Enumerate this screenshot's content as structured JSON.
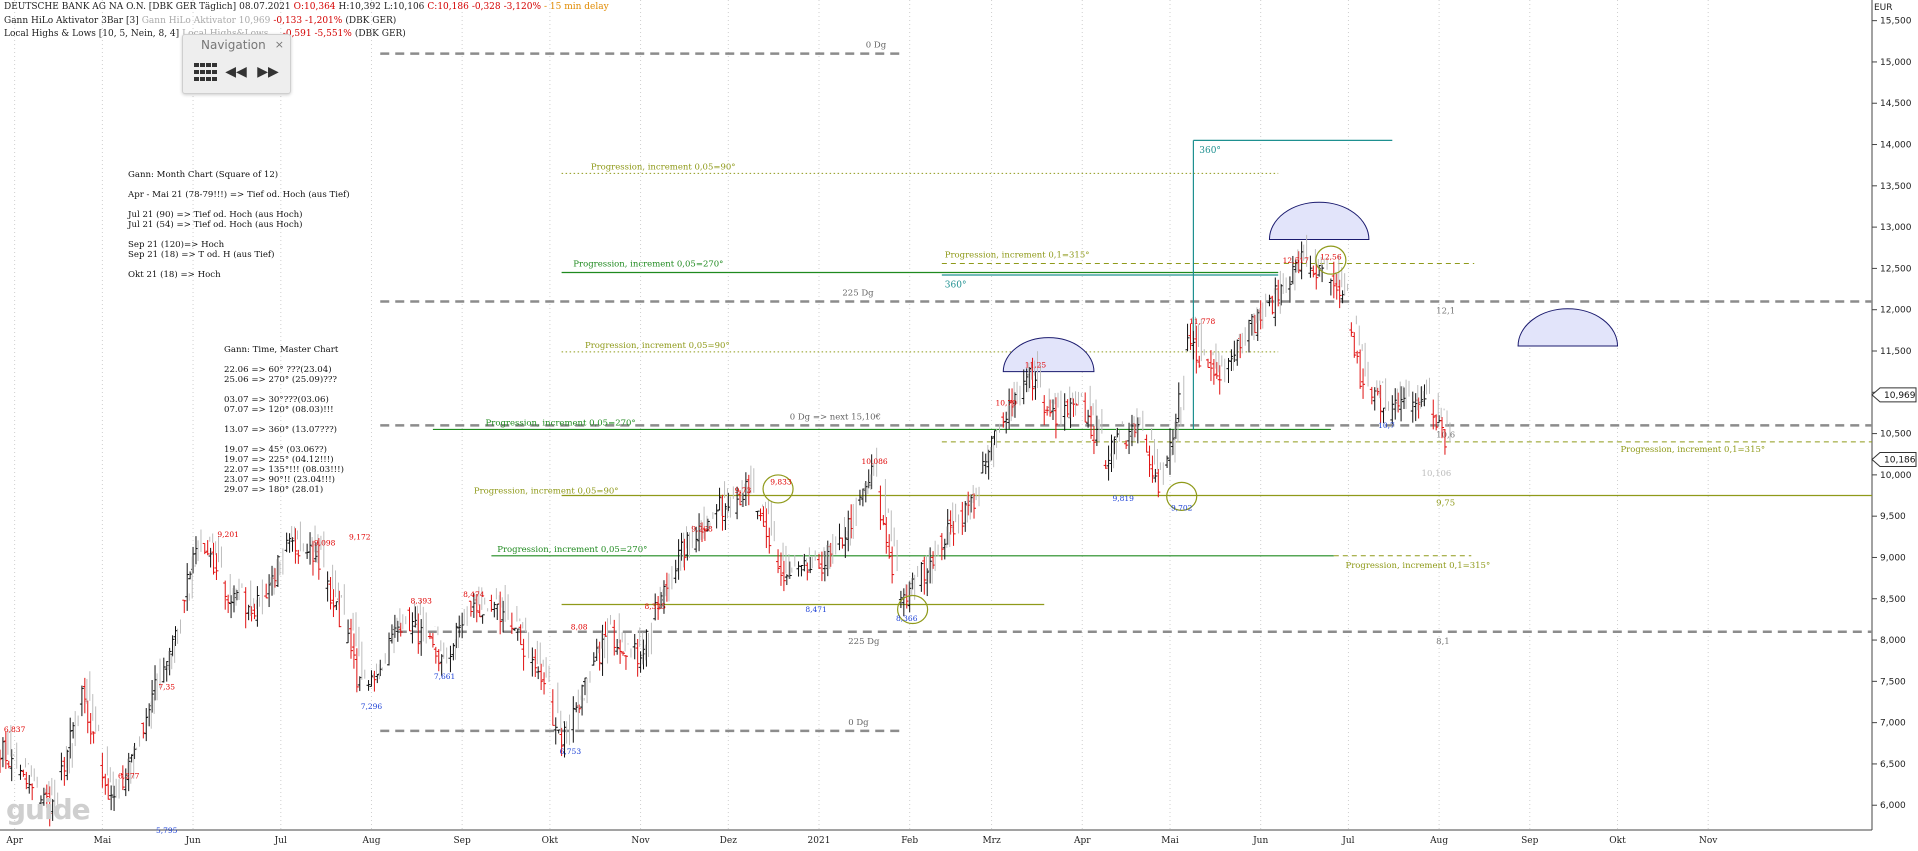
{
  "header": {
    "line1": {
      "name": "DEUTSCHE BANK AG NA O.N. [DBK GER Täglich]",
      "date": "08.07.2021",
      "open": "-",
      "open_val": "O:10,364",
      "high_val": "H:10,392",
      "low_val": "L:10,106",
      "close_val": "C:10,186",
      "change": "-0,328",
      "change_pct": "-3,120%",
      "delay": "- 15 min delay"
    },
    "line2": {
      "name": "Gann HiLo Aktivator 3Bar [3]",
      "value": "Gann HiLo Aktivator 10,969",
      "change": "-0,133 -1,201%",
      "ticker": "(DBK GER)"
    },
    "line3": {
      "name": "Local Highs & Lows [10, 5, Nein, 8, 4]",
      "faded": "Local Highs&Lows ...",
      "change": "-0,591 -5,551%",
      "ticker": "(DBK GER)"
    }
  },
  "navigation": {
    "title": "Navigation",
    "close": "×",
    "rewind": "◀◀",
    "forward": "▶▶"
  },
  "notes": {
    "month_chart": [
      "Gann: Month Chart (Square of 12)",
      "",
      "Apr - Mai 21 (78-79!!!) => Tief od. Hoch (aus Tief)",
      "",
      "Jul 21 (90) => Tief od. Hoch (aus Hoch)",
      "Jul 21 (54) => Tief od. Hoch (aus Hoch)",
      "",
      "Sep 21 (120)=> Hoch",
      "Sep 21 (18) => T od. H (aus Tief)",
      "",
      "Okt 21 (18) => Hoch"
    ],
    "master_chart": [
      "Gann: Time, Master Chart",
      "",
      "22.06 => 60° ???(23.04)",
      "25.06 => 270° (25.09)???",
      "",
      "03.07 => 30°???(03.06)",
      "07.07 => 120° (08.03)!!!",
      "",
      "13.07 => 360° (13.07???)",
      "",
      "19.07 => 45° (03.06??)",
      "19.07 => 225° (04.12!!!)",
      "22.07 => 135°!!! (08.03!!!)",
      "23.07 => 90°!! (23.04!!!)",
      "29.07 => 180° (28.01)"
    ]
  },
  "watermark": "guide",
  "colors": {
    "up_bar": "#111111",
    "down_bar": "#e01010",
    "shadow_bar": "#bdbdbd",
    "gann_dash": "#8c8c8c",
    "olive": "#8f9a1a",
    "green": "#1f8a1f",
    "teal": "#1e9090",
    "high_label": "#e00000",
    "low_label": "#1a3fd6",
    "semicircle_fill": "#e2e4fa",
    "semicircle_stroke": "#1a1a6e",
    "price_tag": "#ffffff"
  },
  "chart_data": {
    "type": "ohlc",
    "currency": "EUR",
    "y_ticks": [
      "15,500",
      "15,000",
      "14,500",
      "14,000",
      "13,500",
      "13,000",
      "12,500",
      "12,000",
      "11,500",
      "11,000",
      "10,500",
      "10,000",
      "9,500",
      "9,000",
      "8,500",
      "8,000",
      "7,500",
      "7,000",
      "6,500",
      "6,000"
    ],
    "y_tick_values": [
      15.5,
      15,
      14.5,
      14,
      13.5,
      13,
      12.5,
      12,
      11.5,
      11,
      10.5,
      10,
      9.5,
      9,
      8.5,
      8,
      7.5,
      7,
      6.5,
      6
    ],
    "ylim": [
      5.7,
      15.75
    ],
    "x_labels": [
      {
        "label": "Apr",
        "d": 5
      },
      {
        "label": "Mai",
        "d": 35
      },
      {
        "label": "Jun",
        "d": 66
      },
      {
        "label": "Jul",
        "d": 96
      },
      {
        "label": "Aug",
        "d": 127
      },
      {
        "label": "Sep",
        "d": 158
      },
      {
        "label": "Okt",
        "d": 188
      },
      {
        "label": "Nov",
        "d": 219
      },
      {
        "label": "Dez",
        "d": 249
      },
      {
        "label": "2021",
        "d": 280
      },
      {
        "label": "Feb",
        "d": 311
      },
      {
        "label": "Mrz",
        "d": 339
      },
      {
        "label": "Apr",
        "d": 370
      },
      {
        "label": "Mai",
        "d": 400
      },
      {
        "label": "Jun",
        "d": 431
      },
      {
        "label": "Jul",
        "d": 461
      },
      {
        "label": "Aug",
        "d": 492
      },
      {
        "label": "Sep",
        "d": 523
      },
      {
        "label": "Okt",
        "d": 553
      },
      {
        "label": "Nov",
        "d": 584
      }
    ],
    "xlim": [
      0,
      640
    ],
    "price_tags": [
      {
        "label": "10,969",
        "y": 10.969
      },
      {
        "label": "10,186",
        "y": 10.186
      }
    ],
    "price_anchors": [
      [
        0,
        6.7
      ],
      [
        10,
        6.2
      ],
      [
        18,
        6.0
      ],
      [
        28,
        7.3
      ],
      [
        38,
        6.0
      ],
      [
        45,
        6.6
      ],
      [
        58,
        7.9
      ],
      [
        68,
        9.2
      ],
      [
        78,
        8.5
      ],
      [
        88,
        8.4
      ],
      [
        98,
        9.1
      ],
      [
        105,
        9.2
      ],
      [
        118,
        8.1
      ],
      [
        124,
        7.3
      ],
      [
        138,
        8.3
      ],
      [
        152,
        7.7
      ],
      [
        160,
        8.4
      ],
      [
        172,
        8.3
      ],
      [
        184,
        7.6
      ],
      [
        192,
        6.8
      ],
      [
        208,
        8.1
      ],
      [
        218,
        7.8
      ],
      [
        232,
        9.0
      ],
      [
        242,
        9.5
      ],
      [
        255,
        9.8
      ],
      [
        268,
        8.7
      ],
      [
        285,
        9.0
      ],
      [
        298,
        10.0
      ],
      [
        308,
        8.4
      ],
      [
        320,
        9.1
      ],
      [
        333,
        9.7
      ],
      [
        342,
        10.7
      ],
      [
        352,
        11.2
      ],
      [
        358,
        10.7
      ],
      [
        370,
        10.8
      ],
      [
        378,
        10.2
      ],
      [
        390,
        10.7
      ],
      [
        396,
        9.8
      ],
      [
        402,
        10.6
      ],
      [
        406,
        11.6
      ],
      [
        416,
        11.2
      ],
      [
        425,
        11.7
      ],
      [
        433,
        12.0
      ],
      [
        445,
        12.6
      ],
      [
        452,
        12.4
      ],
      [
        460,
        12.0
      ],
      [
        466,
        11.0
      ],
      [
        478,
        10.8
      ],
      [
        486,
        10.9
      ],
      [
        492,
        10.6
      ],
      [
        496,
        10.19
      ]
    ],
    "high_labels": [
      {
        "d": 5,
        "y": 6.837,
        "text": "6,837"
      },
      {
        "d": 57,
        "y": 7.35,
        "text": "7,35"
      },
      {
        "d": 44,
        "y": 6.277,
        "text": "6,277"
      },
      {
        "d": 78,
        "y": 9.201,
        "text": "9,201"
      },
      {
        "d": 111,
        "y": 9.098,
        "text": "9,098"
      },
      {
        "d": 123,
        "y": 9.172,
        "text": "9,172"
      },
      {
        "d": 144,
        "y": 8.393,
        "text": "8,393"
      },
      {
        "d": 162,
        "y": 8.474,
        "text": "8,474"
      },
      {
        "d": 198,
        "y": 8.08,
        "text": "8,08"
      },
      {
        "d": 224,
        "y": 8.325,
        "text": "8,325"
      },
      {
        "d": 240,
        "y": 9.268,
        "text": "9,268"
      },
      {
        "d": 254,
        "y": 9.73,
        "text": "9,73"
      },
      {
        "d": 267,
        "y": 9.833,
        "text": "9,833"
      },
      {
        "d": 299,
        "y": 10.086,
        "text": "10,086"
      },
      {
        "d": 344,
        "y": 10.79,
        "text": "10,79"
      },
      {
        "d": 354,
        "y": 11.25,
        "text": "11,25"
      },
      {
        "d": 411,
        "y": 11.778,
        "text": "11,778"
      },
      {
        "d": 443,
        "y": 12.517,
        "text": "12,517"
      },
      {
        "d": 455,
        "y": 12.56,
        "text": "12,56"
      }
    ],
    "low_labels": [
      {
        "d": 57,
        "y": 5.795,
        "text": "5,795"
      },
      {
        "d": 127,
        "y": 7.296,
        "text": "7,296"
      },
      {
        "d": 152,
        "y": 7.661,
        "text": "7,661"
      },
      {
        "d": 195,
        "y": 6.753,
        "text": "6,753"
      },
      {
        "d": 279,
        "y": 8.471,
        "text": "8,471"
      },
      {
        "d": 310,
        "y": 8.366,
        "text": "8,366"
      },
      {
        "d": 384,
        "y": 9.819,
        "text": "9,819"
      },
      {
        "d": 404,
        "y": 9.702,
        "text": "9,702"
      },
      {
        "d": 474,
        "y": 10.7,
        "text": "10,7"
      }
    ],
    "circles": [
      {
        "d": 266,
        "y": 9.83
      },
      {
        "d": 312,
        "y": 8.37
      },
      {
        "d": 404,
        "y": 9.74
      },
      {
        "d": 455,
        "y": 12.6
      }
    ],
    "semicircles": [
      {
        "d1": 343,
        "d2": 374,
        "y": 11.25
      },
      {
        "d1": 434,
        "d2": 468,
        "y": 12.85
      },
      {
        "d1": 519,
        "d2": 553,
        "y": 11.56
      }
    ],
    "gann_levels": [
      {
        "y": 15.1,
        "d1": 130,
        "d2": 309,
        "label": "0 Dg",
        "ld": 296,
        "lyOff": -6
      },
      {
        "y": 12.1,
        "d1": 130,
        "d2": 640,
        "label": "225 Dg",
        "ld": 288,
        "lyOff": -6
      },
      {
        "y": 10.6,
        "d1": 130,
        "d2": 640,
        "label": "0 Dg => next 15,10€",
        "ld": 270,
        "lyOff": -6
      },
      {
        "y": 8.1,
        "d1": 136,
        "d2": 640,
        "label": "225 Dg",
        "ld": 290,
        "lyOff": 12
      },
      {
        "y": 6.9,
        "d1": 130,
        "d2": 309,
        "label": "0 Dg",
        "ld": 290,
        "lyOff": -6
      }
    ],
    "right_level_labels": [
      {
        "y": 12.1,
        "d": 491,
        "text": "12,1",
        "color": "gann"
      },
      {
        "y": 10.6,
        "d": 491,
        "text": "10,6",
        "color": "gann"
      },
      {
        "y": 8.1,
        "d": 491,
        "text": "8,1",
        "color": "gann"
      },
      {
        "y": 9.75,
        "d": 491,
        "text": "9,75",
        "color": "olive"
      },
      {
        "y": 10.106,
        "d": 486,
        "text": "10,106",
        "color": "faint"
      }
    ],
    "progressions": [
      {
        "y": 13.65,
        "d1": 192,
        "d2": 437,
        "style": "dot",
        "color": "olive",
        "label": "Progression, increment 0,05=90°",
        "ld": 202,
        "lyOff": -4
      },
      {
        "y": 11.49,
        "d1": 192,
        "d2": 437,
        "style": "dot",
        "color": "olive",
        "label": "Progression, increment 0,05=90°",
        "ld": 200,
        "lyOff": -4
      },
      {
        "y": 9.75,
        "d1": 192,
        "d2": 640,
        "style": "solid",
        "color": "olive",
        "label": "Progression, increment 0,05=90°",
        "ld": 162,
        "lyOff": -2
      },
      {
        "y": 8.43,
        "d1": 192,
        "d2": 357,
        "style": "solid",
        "color": "olive",
        "label": "",
        "ld": 0,
        "lyOff": 0
      },
      {
        "y": 12.45,
        "d1": 192,
        "d2": 437,
        "style": "solid",
        "color": "green",
        "label": "Progression, increment 0,05=270°",
        "ld": 196,
        "lyOff": -6
      },
      {
        "y": 10.55,
        "d1": 148,
        "d2": 455,
        "style": "solid",
        "color": "green",
        "label": "Progression, increment 0,05=270°",
        "ld": 166,
        "lyOff": -4
      },
      {
        "y": 9.02,
        "d1": 168,
        "d2": 456,
        "style": "solid",
        "color": "green",
        "label": "Progression, increment 0,05=270°",
        "ld": 170,
        "lyOff": -4
      },
      {
        "y": 12.56,
        "d1": 322,
        "d2": 504,
        "style": "dash",
        "color": "olive",
        "label": "Progression, increment 0,1=315°",
        "ld": 323,
        "lyOff": -6
      },
      {
        "y": 10.4,
        "d1": 322,
        "d2": 640,
        "style": "dash",
        "color": "olive",
        "label": "Progression, increment 0,1=315°",
        "ld": 554,
        "lyOff": 10
      },
      {
        "y": 9.02,
        "d1": 456,
        "d2": 503,
        "style": "dash",
        "color": "olive",
        "label": "Progression, increment 0,1=315°",
        "ld": 460,
        "lyOff": 12
      }
    ],
    "teal_lines": [
      {
        "d1": 408,
        "d2": 476,
        "y1": 14.05,
        "y2": 14.05
      },
      {
        "d1": 408,
        "d2": 408,
        "y1": 14.05,
        "y2": 10.55
      },
      {
        "d1": 322,
        "d2": 437,
        "y1": 12.42,
        "y2": 12.42
      }
    ],
    "teal_labels": [
      {
        "d": 410,
        "y": 13.9,
        "text": "360°"
      },
      {
        "d": 323,
        "y": 12.27,
        "text": "360°"
      }
    ]
  }
}
